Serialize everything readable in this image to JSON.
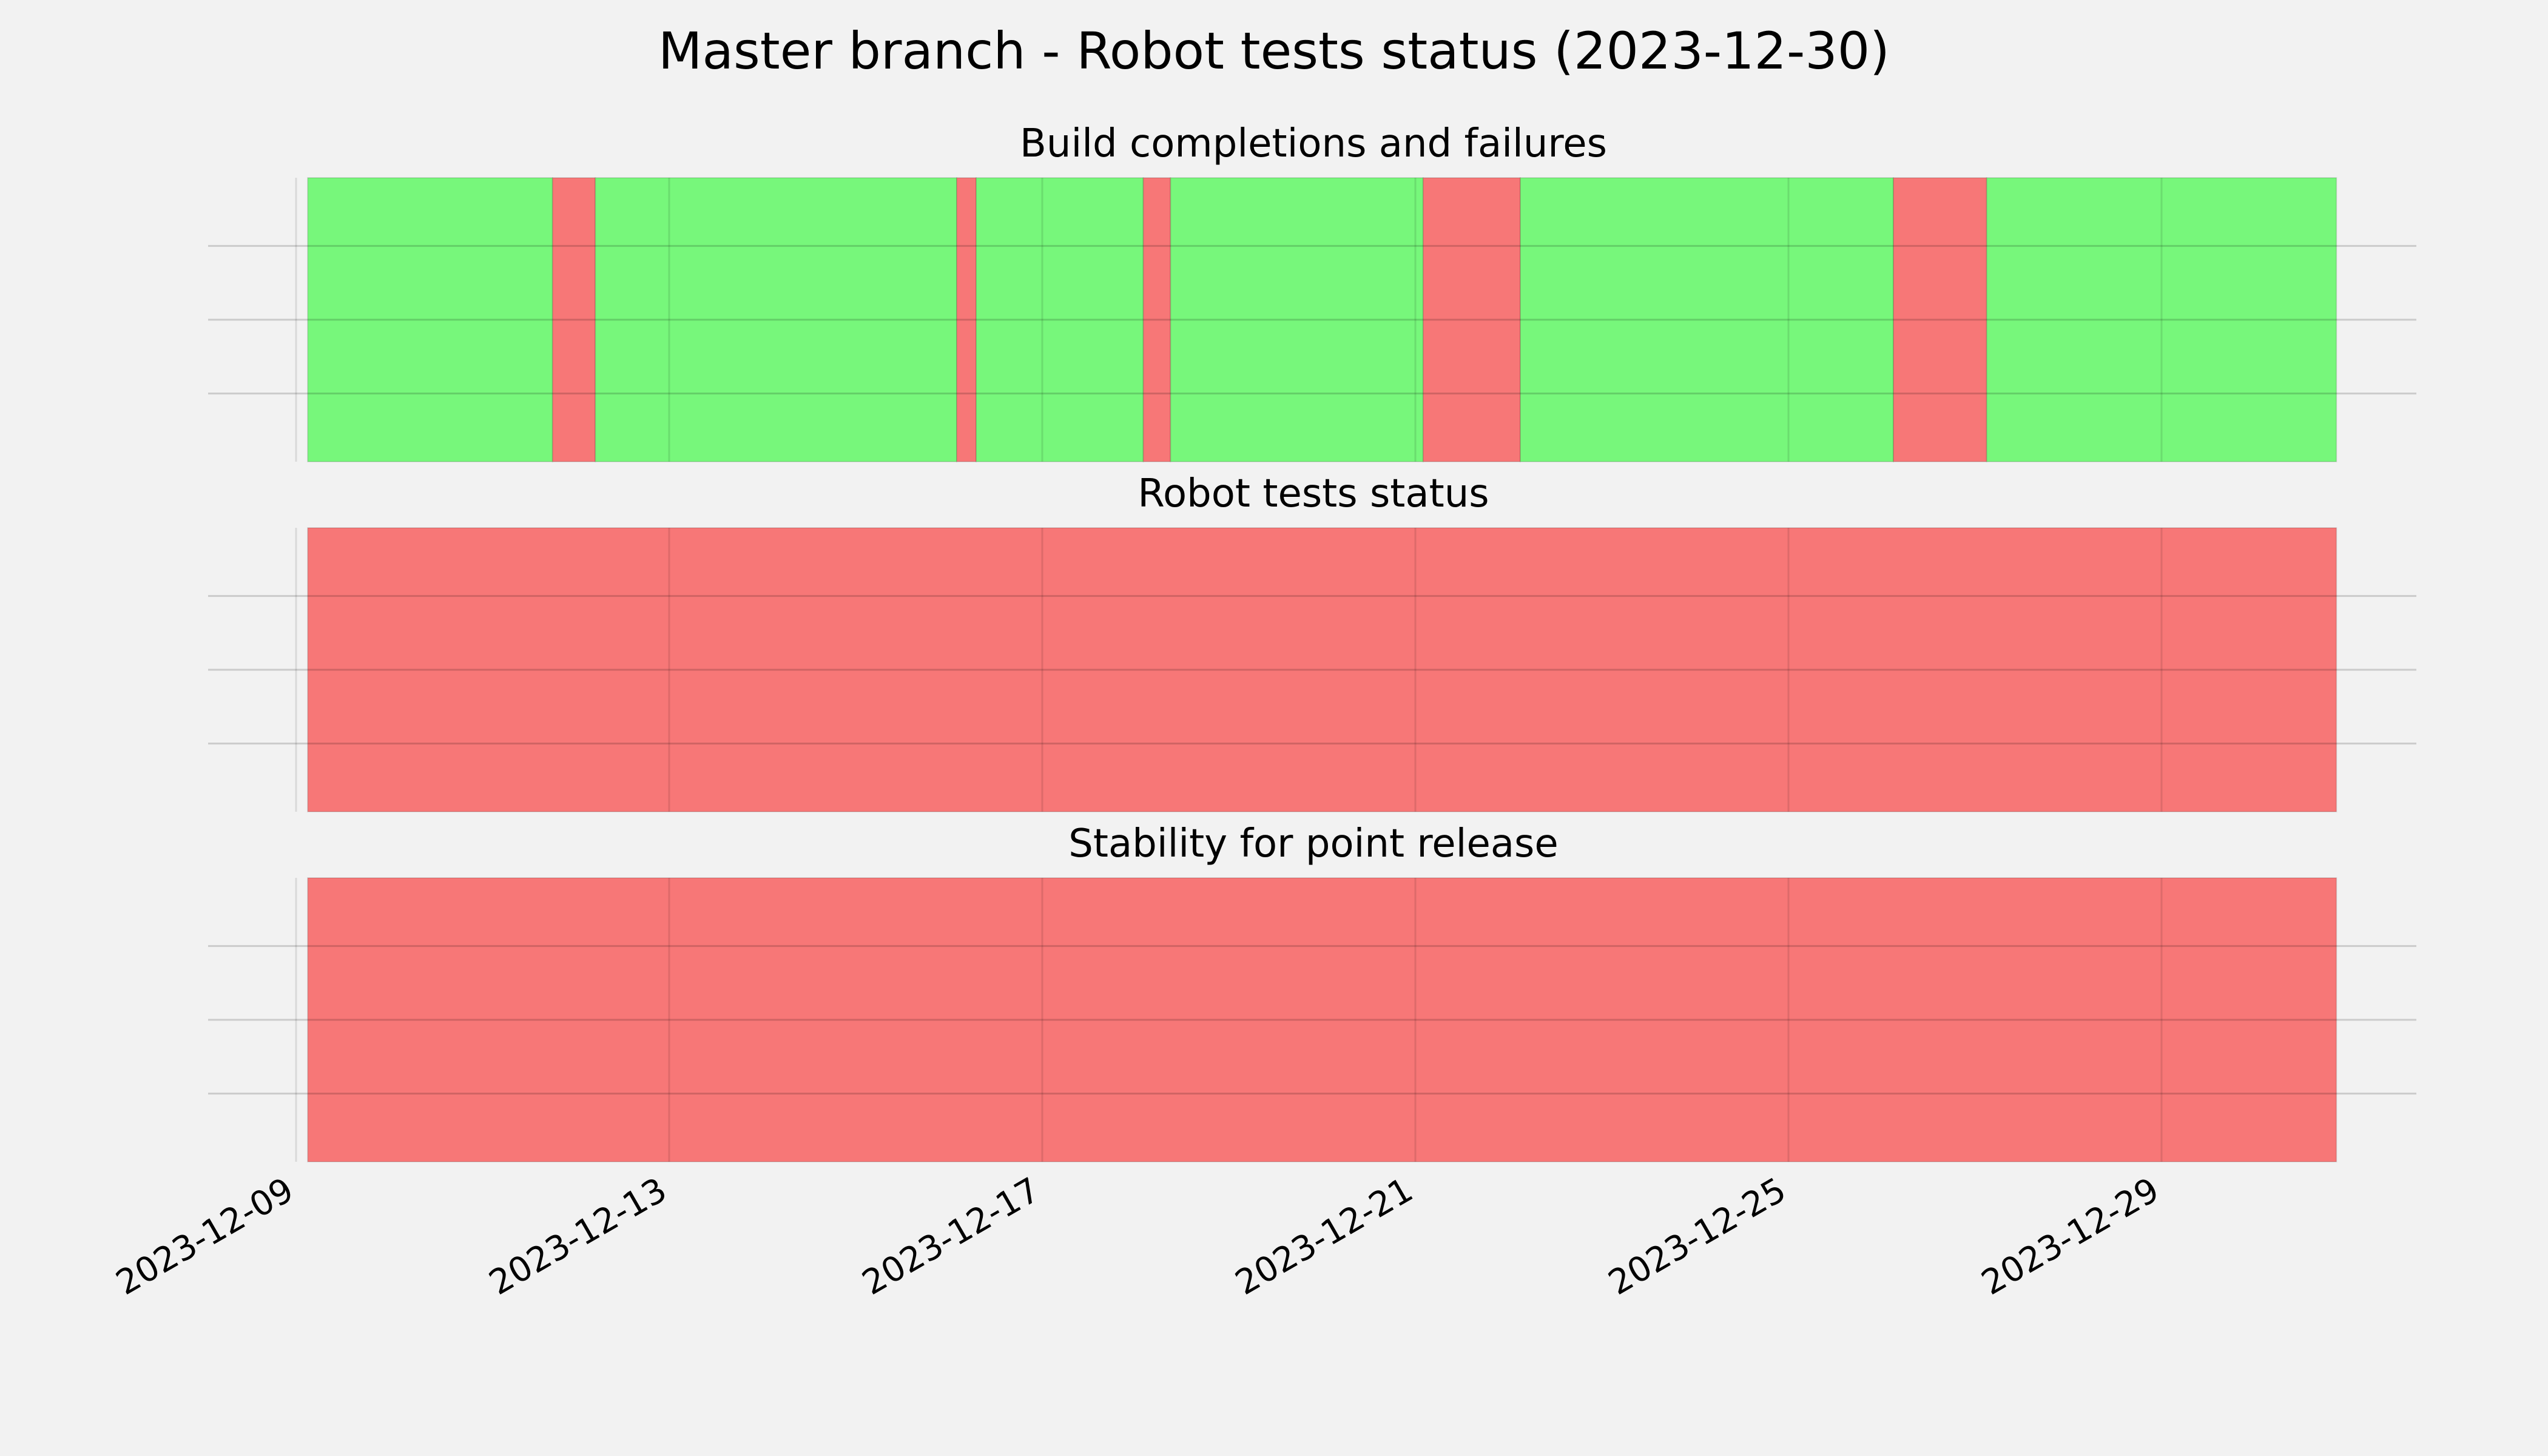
{
  "chart_data": {
    "type": "timeline",
    "title": "Master branch - Robot tests status (2023-12-30)",
    "x_axis": {
      "type": "date",
      "range": [
        "2023-12-09",
        "2023-12-31"
      ],
      "ticks": [
        "2023-12-09",
        "2023-12-13",
        "2023-12-17",
        "2023-12-21",
        "2023-12-25",
        "2023-12-29"
      ]
    },
    "colors": {
      "pass": "#77f77b",
      "fail": "#f77777",
      "background": "#f2f2f2",
      "grid": "#cccccc"
    },
    "grid": true,
    "panels": [
      {
        "title": "Build completions and failures",
        "segments": [
          {
            "start": "2023-12-09 03:00",
            "end": "2023-12-11 18:00",
            "status": "pass"
          },
          {
            "start": "2023-12-11 18:00",
            "end": "2023-12-12 05:00",
            "status": "fail"
          },
          {
            "start": "2023-12-12 05:00",
            "end": "2023-12-16 02:00",
            "status": "pass"
          },
          {
            "start": "2023-12-16 02:00",
            "end": "2023-12-16 07:00",
            "status": "fail"
          },
          {
            "start": "2023-12-16 07:00",
            "end": "2023-12-18 02:00",
            "status": "pass"
          },
          {
            "start": "2023-12-18 02:00",
            "end": "2023-12-18 09:00",
            "status": "fail"
          },
          {
            "start": "2023-12-18 09:00",
            "end": "2023-12-21 02:00",
            "status": "pass"
          },
          {
            "start": "2023-12-21 02:00",
            "end": "2023-12-22 03:00",
            "status": "fail"
          },
          {
            "start": "2023-12-22 03:00",
            "end": "2023-12-26 03:00",
            "status": "pass"
          },
          {
            "start": "2023-12-26 03:00",
            "end": "2023-12-27 03:00",
            "status": "fail"
          },
          {
            "start": "2023-12-27 03:00",
            "end": "2023-12-30 21:00",
            "status": "pass"
          }
        ]
      },
      {
        "title": "Robot tests status",
        "segments": [
          {
            "start": "2023-12-09 03:00",
            "end": "2023-12-30 21:00",
            "status": "fail"
          }
        ]
      },
      {
        "title": "Stability for point release",
        "segments": [
          {
            "start": "2023-12-09 03:00",
            "end": "2023-12-30 21:00",
            "status": "fail"
          }
        ]
      }
    ]
  }
}
